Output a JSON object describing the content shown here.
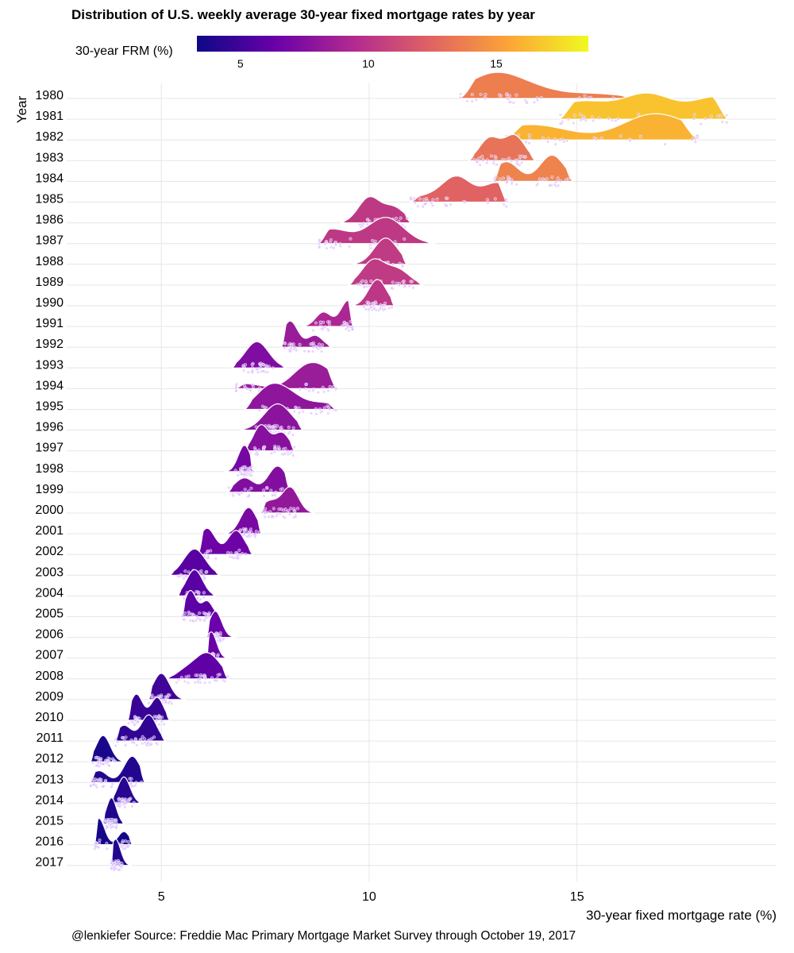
{
  "chart_data": {
    "type": "ridgeline",
    "title": "Distribution of U.S. weekly average 30-year fixed mortgage rates by year",
    "xlabel": "30-year fixed mortgage rate (%)",
    "ylabel": "Year",
    "xlim": [
      2.8,
      19.8
    ],
    "x_ticks": [
      5,
      10,
      15
    ],
    "grid": true,
    "legend": {
      "title": "30-year FRM (%)",
      "type": "colorbar",
      "placement": "top",
      "range": [
        3.3,
        18.6
      ],
      "ticks": [
        5,
        10,
        15
      ],
      "palette": [
        "#0d0887",
        "#6a00a8",
        "#b12a90",
        "#e16462",
        "#fca636",
        "#f0f921"
      ]
    },
    "caption": "@lenkiefer Source: Freddie Mac Primary Mortgage Market Survey through October 19, 2017",
    "series": [
      {
        "year": "1980",
        "mean": 13.7,
        "range": [
          12.2,
          16.4
        ],
        "peaks": [
          [
            12.9,
            1.0
          ],
          [
            13.3,
            0.45
          ],
          [
            14.1,
            0.35
          ],
          [
            15.5,
            0.25
          ]
        ]
      },
      {
        "year": "1981",
        "mean": 16.6,
        "range": [
          14.6,
          18.6
        ],
        "peaks": [
          [
            14.7,
            0.3
          ],
          [
            15.3,
            0.45
          ],
          [
            16.7,
            0.95
          ],
          [
            18.4,
            0.85
          ]
        ]
      },
      {
        "year": "1982",
        "mean": 16.0,
        "range": [
          13.3,
          17.9
        ],
        "peaks": [
          [
            13.6,
            0.55
          ],
          [
            14.5,
            0.35
          ],
          [
            16.7,
            1.0
          ],
          [
            17.5,
            0.45
          ]
        ]
      },
      {
        "year": "1983",
        "mean": 13.2,
        "range": [
          12.4,
          14.0
        ],
        "peaks": [
          [
            12.9,
            0.9
          ],
          [
            13.5,
            1.0
          ]
        ]
      },
      {
        "year": "1984",
        "mean": 13.9,
        "range": [
          13.0,
          14.9
        ],
        "peaks": [
          [
            13.3,
            0.75
          ],
          [
            14.4,
            1.0
          ]
        ]
      },
      {
        "year": "1985",
        "mean": 12.4,
        "range": [
          11.0,
          13.3
        ],
        "peaks": [
          [
            12.1,
            1.0
          ],
          [
            13.1,
            0.75
          ],
          [
            11.3,
            0.2
          ]
        ]
      },
      {
        "year": "1986",
        "mean": 10.2,
        "range": [
          9.3,
          11.0
        ],
        "peaks": [
          [
            10.0,
            1.0
          ],
          [
            10.6,
            0.6
          ]
        ]
      },
      {
        "year": "1987",
        "mean": 10.2,
        "range": [
          8.8,
          11.6
        ],
        "peaks": [
          [
            9.1,
            0.55
          ],
          [
            10.4,
            1.0
          ]
        ]
      },
      {
        "year": "1988",
        "mean": 10.3,
        "range": [
          9.6,
          10.9
        ],
        "peaks": [
          [
            10.4,
            1.0
          ]
        ]
      },
      {
        "year": "1989",
        "mean": 10.3,
        "range": [
          9.5,
          11.3
        ],
        "peaks": [
          [
            10.1,
            1.0
          ],
          [
            10.7,
            0.6
          ]
        ]
      },
      {
        "year": "1990",
        "mean": 10.1,
        "range": [
          9.6,
          10.6
        ],
        "peaks": [
          [
            10.2,
            1.0
          ]
        ]
      },
      {
        "year": "1991",
        "mean": 9.2,
        "range": [
          8.4,
          9.6
        ],
        "peaks": [
          [
            8.9,
            0.55
          ],
          [
            9.5,
            1.0
          ]
        ]
      },
      {
        "year": "1992",
        "mean": 8.4,
        "range": [
          7.9,
          9.1
        ],
        "peaks": [
          [
            8.1,
            1.0
          ],
          [
            8.7,
            0.45
          ]
        ]
      },
      {
        "year": "1993",
        "mean": 7.3,
        "range": [
          6.7,
          8.0
        ],
        "peaks": [
          [
            7.3,
            1.0
          ]
        ]
      },
      {
        "year": "1994",
        "mean": 8.4,
        "range": [
          6.8,
          9.2
        ],
        "peaks": [
          [
            7.0,
            0.25
          ],
          [
            8.5,
            1.0
          ],
          [
            9.0,
            0.6
          ]
        ]
      },
      {
        "year": "1995",
        "mean": 7.9,
        "range": [
          7.0,
          9.2
        ],
        "peaks": [
          [
            7.6,
            1.0
          ],
          [
            8.1,
            0.6
          ],
          [
            8.9,
            0.3
          ]
        ]
      },
      {
        "year": "1996",
        "mean": 7.8,
        "range": [
          6.9,
          8.4
        ],
        "peaks": [
          [
            7.8,
            1.0
          ]
        ]
      },
      {
        "year": "1997",
        "mean": 7.6,
        "range": [
          7.0,
          8.2
        ],
        "peaks": [
          [
            7.4,
            1.0
          ],
          [
            7.9,
            0.7
          ]
        ]
      },
      {
        "year": "1998",
        "mean": 6.9,
        "range": [
          6.5,
          7.2
        ],
        "peaks": [
          [
            7.0,
            1.0
          ]
        ]
      },
      {
        "year": "1999",
        "mean": 7.4,
        "range": [
          6.6,
          8.1
        ],
        "peaks": [
          [
            7.0,
            0.55
          ],
          [
            7.8,
            1.0
          ]
        ]
      },
      {
        "year": "2000",
        "mean": 8.1,
        "range": [
          7.4,
          8.7
        ],
        "peaks": [
          [
            8.1,
            1.0
          ],
          [
            7.6,
            0.45
          ]
        ]
      },
      {
        "year": "2001",
        "mean": 7.0,
        "range": [
          6.5,
          7.4
        ],
        "peaks": [
          [
            7.1,
            1.0
          ]
        ]
      },
      {
        "year": "2002",
        "mean": 6.5,
        "range": [
          5.9,
          7.2
        ],
        "peaks": [
          [
            6.1,
            0.6
          ],
          [
            6.8,
            0.55
          ]
        ]
      },
      {
        "year": "2003",
        "mean": 5.8,
        "range": [
          5.2,
          6.4
        ],
        "peaks": [
          [
            5.8,
            1.0
          ]
        ]
      },
      {
        "year": "2004",
        "mean": 5.8,
        "range": [
          5.4,
          6.3
        ],
        "peaks": [
          [
            5.8,
            1.0
          ]
        ]
      },
      {
        "year": "2005",
        "mean": 5.9,
        "range": [
          5.5,
          6.4
        ],
        "peaks": [
          [
            5.7,
            1.0
          ],
          [
            6.1,
            0.6
          ]
        ]
      },
      {
        "year": "2006",
        "mean": 6.4,
        "range": [
          6.1,
          6.8
        ],
        "peaks": [
          [
            6.3,
            1.0
          ]
        ]
      },
      {
        "year": "2007",
        "mean": 6.3,
        "range": [
          6.1,
          6.7
        ],
        "peaks": [
          [
            6.2,
            1.0
          ]
        ]
      },
      {
        "year": "2008",
        "mean": 6.0,
        "range": [
          5.1,
          6.6
        ],
        "peaks": [
          [
            6.0,
            0.6
          ],
          [
            6.3,
            0.45
          ],
          [
            5.6,
            0.3
          ]
        ]
      },
      {
        "year": "2009",
        "mean": 5.0,
        "range": [
          4.7,
          5.6
        ],
        "peaks": [
          [
            5.0,
            1.0
          ]
        ]
      },
      {
        "year": "2010",
        "mean": 4.7,
        "range": [
          4.2,
          5.2
        ],
        "peaks": [
          [
            4.4,
            0.8
          ],
          [
            4.9,
            0.7
          ]
        ]
      },
      {
        "year": "2011",
        "mean": 4.5,
        "range": [
          3.9,
          5.1
        ],
        "peaks": [
          [
            4.1,
            0.45
          ],
          [
            4.7,
            0.75
          ]
        ]
      },
      {
        "year": "2012",
        "mean": 3.7,
        "range": [
          3.3,
          4.1
        ],
        "peaks": [
          [
            3.6,
            1.0
          ]
        ]
      },
      {
        "year": "2013",
        "mean": 4.0,
        "range": [
          3.3,
          4.6
        ],
        "peaks": [
          [
            3.5,
            0.45
          ],
          [
            4.3,
            1.0
          ]
        ]
      },
      {
        "year": "2014",
        "mean": 4.2,
        "range": [
          3.8,
          4.5
        ],
        "peaks": [
          [
            4.1,
            1.0
          ]
        ]
      },
      {
        "year": "2015",
        "mean": 3.9,
        "range": [
          3.6,
          4.1
        ],
        "peaks": [
          [
            3.8,
            1.0
          ]
        ]
      },
      {
        "year": "2016",
        "mean": 3.6,
        "range": [
          3.4,
          4.3
        ],
        "peaks": [
          [
            3.5,
            1.0
          ],
          [
            4.1,
            0.5
          ]
        ]
      },
      {
        "year": "2017",
        "mean": 4.0,
        "range": [
          3.8,
          4.3
        ],
        "peaks": [
          [
            3.9,
            1.0
          ]
        ]
      }
    ]
  }
}
